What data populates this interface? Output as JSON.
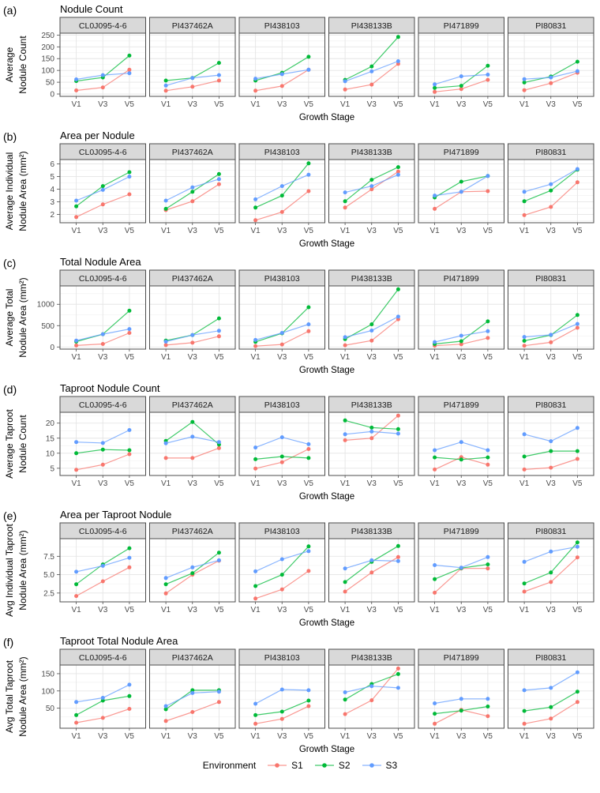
{
  "chart_data": {
    "type": "line",
    "xlabel": "Growth Stage",
    "x_categories": [
      "V1",
      "V3",
      "V5"
    ],
    "facets": [
      "CL0J095-4-6",
      "PI437462A",
      "PI438103",
      "PI438133B",
      "PI471899",
      "PI80831"
    ],
    "legend_title": "Environment",
    "series_names": [
      "S1",
      "S2",
      "S3"
    ],
    "series_colors": {
      "S1": "#F8766D",
      "S2": "#00BA38",
      "S3": "#619CFF"
    },
    "panel_style": {
      "strip_bg": "#d9d9d9",
      "border": "#4d4d4d",
      "grid_major": "#e5e5e5",
      "grid_minor": "#f2f2f2",
      "tick_text": "#4d4d4d"
    },
    "panels": [
      {
        "tag": "(a)",
        "title": "Nodule Count",
        "ylabel": [
          "Average",
          "Nodule Count"
        ],
        "yticks": [
          0,
          50,
          100,
          150,
          200,
          250
        ],
        "ytick_labels": [
          "0",
          "50",
          "100",
          "150",
          "200",
          "250"
        ],
        "ylim": [
          -10,
          258
        ],
        "data": {
          "CL0J095-4-6": {
            "S1": [
              15,
              28,
              103
            ],
            "S2": [
              55,
              70,
              163
            ],
            "S3": [
              62,
              80,
              88
            ]
          },
          "PI437462A": {
            "S1": [
              14,
              31,
              57
            ],
            "S2": [
              57,
              68,
              132
            ],
            "S3": [
              36,
              68,
              80
            ]
          },
          "PI438103": {
            "S1": [
              14,
              34,
              103
            ],
            "S2": [
              57,
              90,
              158
            ],
            "S3": [
              65,
              84,
              103
            ]
          },
          "PI438133B": {
            "S1": [
              19,
              40,
              128
            ],
            "S2": [
              60,
              117,
              242
            ],
            "S3": [
              54,
              96,
              139
            ]
          },
          "PI471899": {
            "S1": [
              9,
              21,
              60
            ],
            "S2": [
              26,
              35,
              120
            ],
            "S3": [
              41,
              75,
              82
            ]
          },
          "PI80831": {
            "S1": [
              16,
              46,
              90
            ],
            "S2": [
              49,
              74,
              137
            ],
            "S3": [
              63,
              70,
              97
            ]
          }
        }
      },
      {
        "tag": "(b)",
        "title": "Area per Nodule",
        "ylabel": [
          "Average Individual",
          "Nodule Area (mm²)"
        ],
        "yticks": [
          2,
          3,
          4,
          5,
          6
        ],
        "ytick_labels": [
          "2",
          "3",
          "4",
          "5",
          "6"
        ],
        "ylim": [
          1.35,
          6.35
        ],
        "data": {
          "CL0J095-4-6": {
            "S1": [
              1.8,
              2.8,
              3.6
            ],
            "S2": [
              2.65,
              4.25,
              5.35
            ],
            "S3": [
              3.1,
              3.95,
              5.0
            ]
          },
          "PI437462A": {
            "S1": [
              2.35,
              3.05,
              4.4
            ],
            "S2": [
              2.45,
              3.8,
              5.2
            ],
            "S3": [
              3.1,
              4.15,
              4.8
            ]
          },
          "PI438103": {
            "S1": [
              1.55,
              2.2,
              3.85
            ],
            "S2": [
              2.55,
              3.5,
              6.05
            ],
            "S3": [
              3.2,
              4.25,
              5.15
            ]
          },
          "PI438133B": {
            "S1": [
              2.55,
              4.0,
              5.4
            ],
            "S2": [
              3.05,
              4.75,
              5.75
            ],
            "S3": [
              3.75,
              4.25,
              5.15
            ]
          },
          "PI471899": {
            "S1": [
              2.45,
              3.8,
              3.85
            ],
            "S2": [
              3.35,
              4.6,
              5.05
            ],
            "S3": [
              3.5,
              3.8,
              5.05
            ]
          },
          "PI80831": {
            "S1": [
              1.95,
              2.6,
              4.55
            ],
            "S2": [
              3.05,
              3.9,
              5.55
            ],
            "S3": [
              3.8,
              4.4,
              5.6
            ]
          }
        }
      },
      {
        "tag": "(c)",
        "title": "Total Nodule Area",
        "ylabel": [
          "Average Total",
          "Nodule Area (mm²)"
        ],
        "yticks": [
          0,
          500,
          1000
        ],
        "ytick_labels": [
          "0",
          "500",
          "1000"
        ],
        "ylim": [
          -50,
          1430
        ],
        "data": {
          "CL0J095-4-6": {
            "S1": [
              35,
              70,
              330
            ],
            "S2": [
              125,
              300,
              850
            ],
            "S3": [
              150,
              300,
              420
            ]
          },
          "PI437462A": {
            "S1": [
              45,
              100,
              250
            ],
            "S2": [
              150,
              280,
              670
            ],
            "S3": [
              125,
              280,
              380
            ]
          },
          "PI438103": {
            "S1": [
              20,
              60,
              370
            ],
            "S2": [
              120,
              320,
              930
            ],
            "S3": [
              165,
              330,
              530
            ]
          },
          "PI438133B": {
            "S1": [
              40,
              150,
              650
            ],
            "S2": [
              185,
              530,
              1350
            ],
            "S3": [
              230,
              385,
              710
            ]
          },
          "PI471899": {
            "S1": [
              30,
              65,
              210
            ],
            "S2": [
              70,
              135,
              600
            ],
            "S3": [
              115,
              265,
              370
            ]
          },
          "PI80831": {
            "S1": [
              30,
              110,
              450
            ],
            "S2": [
              145,
              280,
              750
            ],
            "S3": [
              235,
              285,
              540
            ]
          }
        }
      },
      {
        "tag": "(d)",
        "title": "Taproot Nodule Count",
        "ylabel": [
          "Average Taproot",
          "Nodule Count"
        ],
        "yticks": [
          5,
          10,
          15,
          20
        ],
        "ytick_labels": [
          "5",
          "10",
          "15",
          "20"
        ],
        "ylim": [
          2.6,
          23.6
        ],
        "data": {
          "CL0J095-4-6": {
            "S1": [
              4.5,
              6.2,
              9.7
            ],
            "S2": [
              10.0,
              11.2,
              11.0
            ],
            "S3": [
              13.7,
              13.4,
              17.7
            ]
          },
          "PI437462A": {
            "S1": [
              8.4,
              8.4,
              11.7
            ],
            "S2": [
              14.1,
              20.4,
              12.9
            ],
            "S3": [
              13.3,
              15.5,
              13.7
            ]
          },
          "PI438103": {
            "S1": [
              4.9,
              7.0,
              11.4
            ],
            "S2": [
              8.0,
              8.9,
              8.4
            ],
            "S3": [
              11.9,
              15.3,
              13.0
            ]
          },
          "PI438133B": {
            "S1": [
              14.3,
              15.0,
              22.5
            ],
            "S2": [
              20.9,
              18.5,
              18.0
            ],
            "S3": [
              16.3,
              17.2,
              16.5
            ]
          },
          "PI471899": {
            "S1": [
              4.6,
              8.7,
              6.2
            ],
            "S2": [
              8.6,
              7.9,
              8.6
            ],
            "S3": [
              11.0,
              13.7,
              11.0
            ]
          },
          "PI80831": {
            "S1": [
              4.6,
              5.2,
              8.1
            ],
            "S2": [
              8.9,
              10.7,
              10.7
            ],
            "S3": [
              16.3,
              14.0,
              18.4
            ]
          }
        }
      },
      {
        "tag": "(e)",
        "title": "Area per Taproot Nodule",
        "ylabel": [
          "Avg Individual Taproot",
          "Nodule Area (mm²)"
        ],
        "yticks": [
          2.5,
          5.0,
          7.5
        ],
        "ytick_labels": [
          "2.5",
          "5.0",
          "7.5"
        ],
        "ylim": [
          1.3,
          9.9
        ],
        "data": {
          "CL0J095-4-6": {
            "S1": [
              2.1,
              4.1,
              6.0
            ],
            "S2": [
              3.7,
              6.4,
              8.6
            ],
            "S3": [
              5.4,
              6.2,
              7.3
            ]
          },
          "PI437462A": {
            "S1": [
              2.45,
              5.0,
              6.9
            ],
            "S2": [
              3.7,
              5.2,
              8.0
            ],
            "S3": [
              4.55,
              6.0,
              6.95
            ]
          },
          "PI438103": {
            "S1": [
              1.75,
              3.0,
              5.5
            ],
            "S2": [
              3.45,
              5.0,
              8.85
            ],
            "S3": [
              5.45,
              7.1,
              8.2
            ]
          },
          "PI438133B": {
            "S1": [
              2.7,
              5.3,
              7.4
            ],
            "S2": [
              4.0,
              6.75,
              8.9
            ],
            "S3": [
              5.85,
              6.95,
              6.85
            ]
          },
          "PI471899": {
            "S1": [
              2.55,
              5.85,
              5.85
            ],
            "S2": [
              4.4,
              5.9,
              6.4
            ],
            "S3": [
              6.3,
              5.95,
              7.4
            ]
          },
          "PI80831": {
            "S1": [
              2.7,
              4.0,
              7.35
            ],
            "S2": [
              3.8,
              5.3,
              9.4
            ],
            "S3": [
              6.75,
              8.15,
              8.8
            ]
          }
        }
      },
      {
        "tag": "(f)",
        "title": "Taproot Total Nodule Area",
        "ylabel": [
          "Avg Total Taproot",
          "Nodule Area (mm²)"
        ],
        "yticks": [
          50,
          100,
          150
        ],
        "ytick_labels": [
          "50",
          "100",
          "150"
        ],
        "ylim": [
          -8,
          175
        ],
        "data": {
          "CL0J095-4-6": {
            "S1": [
              8,
              22,
              48
            ],
            "S2": [
              30,
              72,
              85
            ],
            "S3": [
              68,
              80,
              118
            ]
          },
          "PI437462A": {
            "S1": [
              13,
              39,
              68
            ],
            "S2": [
              47,
              102,
              102
            ],
            "S3": [
              56,
              94,
              98
            ]
          },
          "PI438103": {
            "S1": [
              5,
              19,
              56
            ],
            "S2": [
              30,
              40,
              72
            ],
            "S3": [
              63,
              104,
              102
            ]
          },
          "PI438133B": {
            "S1": [
              33,
              73,
              165
            ],
            "S2": [
              75,
              120,
              149
            ],
            "S3": [
              96,
              114,
              109
            ]
          },
          "PI471899": {
            "S1": [
              5,
              45,
              27
            ],
            "S2": [
              34,
              43,
              55
            ],
            "S3": [
              64,
              77,
              77
            ]
          },
          "PI80831": {
            "S1": [
              5,
              20,
              68
            ],
            "S2": [
              42,
              53,
              98
            ],
            "S3": [
              102,
              109,
              154
            ]
          }
        }
      }
    ]
  }
}
